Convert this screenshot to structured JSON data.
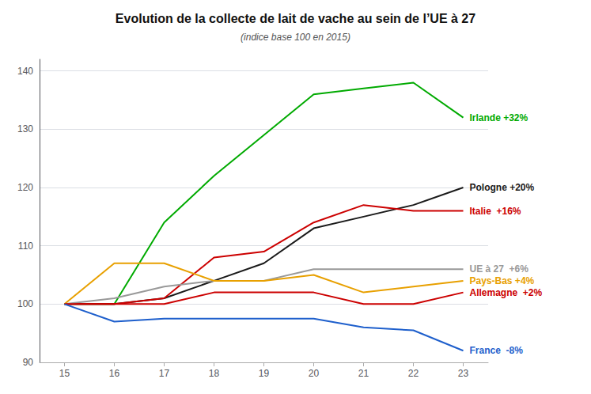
{
  "chart_data": {
    "type": "line",
    "title": "Evolution de la collecte de lait de vache au sein de l’UE à 27",
    "subtitle": "(indice base 100 en 2015)",
    "x": [
      15,
      16,
      17,
      18,
      19,
      20,
      21,
      22,
      23
    ],
    "series": [
      {
        "name": "Irlande +32%",
        "color": "#00aa00",
        "values": [
          100,
          100,
          114,
          122,
          129,
          136,
          137,
          138,
          132
        ]
      },
      {
        "name": "Pologne +20%",
        "color": "#1a1a1a",
        "values": [
          100,
          100,
          101,
          104,
          107,
          113,
          115,
          117,
          120
        ]
      },
      {
        "name": "Italie  +16%",
        "color": "#cc0000",
        "values": [
          100,
          100,
          101,
          108,
          109,
          114,
          117,
          116,
          116
        ]
      },
      {
        "name": "UE à 27  +6%",
        "color": "#999999",
        "values": [
          100,
          101,
          103,
          104,
          104,
          106,
          106,
          106,
          106
        ]
      },
      {
        "name": "Pays-Bas +4%",
        "color": "#e8a000",
        "values": [
          100,
          107,
          107,
          104,
          104,
          105,
          102,
          103,
          104
        ]
      },
      {
        "name": "Allemagne  +2%",
        "color": "#cc0000",
        "values": [
          100,
          100,
          100,
          102,
          102,
          102,
          100,
          100,
          102
        ]
      },
      {
        "name": "France  -8%",
        "color": "#1e5fcc",
        "values": [
          100,
          97,
          97.5,
          97.5,
          97.5,
          97.5,
          96,
          95.5,
          92
        ]
      }
    ],
    "xlim": [
      14.5,
      23.5
    ],
    "xticks": [
      15,
      16,
      17,
      18,
      19,
      20,
      21,
      22,
      23
    ],
    "ylim": [
      90,
      142
    ],
    "yticks": [
      90,
      100,
      110,
      120,
      130,
      140
    ],
    "grid": true
  }
}
